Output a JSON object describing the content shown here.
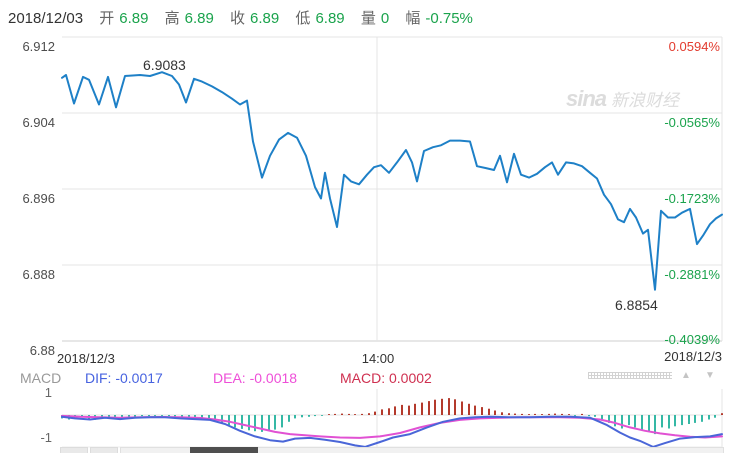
{
  "header": {
    "date": "2018/12/03",
    "fields": [
      {
        "label": "开",
        "value": "6.89"
      },
      {
        "label": "高",
        "value": "6.89"
      },
      {
        "label": "收",
        "value": "6.89"
      },
      {
        "label": "低",
        "value": "6.89"
      },
      {
        "label": "量",
        "value": "0"
      },
      {
        "label": "幅",
        "value": "-0.75%"
      }
    ]
  },
  "watermark": {
    "logo": "sina",
    "brand": "新浪财经"
  },
  "icons": {
    "pane_up": "▲",
    "pane_down": "▼"
  },
  "colors": {
    "price_line": "#1e80c7",
    "dif_line": "#4a66d8",
    "dea_line": "#e151d3",
    "hist_positive": "#b43a2c",
    "hist_negative": "#35b8a5",
    "grid": "#e4e4e4",
    "axis_positive_pct": "#e23b2e",
    "axis_negative_pct": "#1aa34c"
  },
  "macd_panel": {
    "title": "MACD",
    "dif_label": "DIF: -0.0017",
    "dea_label": "DEA: -0.0018",
    "macd_label": "MACD: 0.0002"
  },
  "chart_data": [
    {
      "type": "line",
      "name": "intraday-price",
      "y_axis_left": [
        "6.912",
        "6.904",
        "6.896",
        "6.888",
        "6.88"
      ],
      "y_axis_right": [
        "0.0594%",
        "-0.0565%",
        "-0.1723%",
        "-0.2881%",
        "-0.4039%"
      ],
      "y_axis_right_colors": [
        "#e23b2e",
        "#1aa34c",
        "#1aa34c",
        "#1aa34c",
        "#1aa34c"
      ],
      "x_axis_labels": [
        "2018/12/3",
        "14:00",
        "2018/12/3"
      ],
      "ylim": [
        6.88,
        6.912
      ],
      "high_label": "6.9083",
      "low_label": "6.8854",
      "points": [
        [
          62,
          6.9077
        ],
        [
          66,
          6.908
        ],
        [
          74,
          6.905
        ],
        [
          83,
          6.9078
        ],
        [
          89,
          6.9075
        ],
        [
          99,
          6.9049
        ],
        [
          108,
          6.9078
        ],
        [
          116,
          6.9046
        ],
        [
          125,
          6.9079
        ],
        [
          140,
          6.908
        ],
        [
          150,
          6.9079
        ],
        [
          162,
          6.9083
        ],
        [
          172,
          6.9079
        ],
        [
          179,
          6.907
        ],
        [
          186,
          6.9051
        ],
        [
          194,
          6.9076
        ],
        [
          202,
          6.9073
        ],
        [
          212,
          6.9068
        ],
        [
          222,
          6.9062
        ],
        [
          232,
          6.9055
        ],
        [
          240,
          6.9049
        ],
        [
          247,
          6.9053
        ],
        [
          253,
          6.901
        ],
        [
          262,
          6.8972
        ],
        [
          270,
          6.8995
        ],
        [
          279,
          6.9012
        ],
        [
          288,
          6.9019
        ],
        [
          297,
          6.9014
        ],
        [
          306,
          6.8995
        ],
        [
          315,
          6.8962
        ],
        [
          321,
          6.895
        ],
        [
          325,
          6.8977
        ],
        [
          330,
          6.895
        ],
        [
          337,
          6.892
        ],
        [
          344,
          6.8975
        ],
        [
          351,
          6.8968
        ],
        [
          359,
          6.8965
        ],
        [
          367,
          6.8975
        ],
        [
          374,
          6.8983
        ],
        [
          381,
          6.8985
        ],
        [
          389,
          6.8977
        ],
        [
          397,
          6.8988
        ],
        [
          406,
          6.9001
        ],
        [
          412,
          6.8988
        ],
        [
          417,
          6.8968
        ],
        [
          424,
          6.9
        ],
        [
          433,
          6.9004
        ],
        [
          441,
          6.9006
        ],
        [
          450,
          6.9011
        ],
        [
          460,
          6.9011
        ],
        [
          470,
          6.901
        ],
        [
          477,
          6.8984
        ],
        [
          486,
          6.8982
        ],
        [
          494,
          6.898
        ],
        [
          500,
          6.8995
        ],
        [
          507,
          6.8967
        ],
        [
          514,
          6.8997
        ],
        [
          521,
          6.8975
        ],
        [
          529,
          6.8972
        ],
        [
          537,
          6.8976
        ],
        [
          545,
          6.8983
        ],
        [
          552,
          6.8988
        ],
        [
          558,
          6.8975
        ],
        [
          566,
          6.8988
        ],
        [
          574,
          6.8987
        ],
        [
          582,
          6.8984
        ],
        [
          590,
          6.8977
        ],
        [
          597,
          6.8971
        ],
        [
          604,
          6.8954
        ],
        [
          611,
          6.8944
        ],
        [
          618,
          6.8928
        ],
        [
          624,
          6.8925
        ],
        [
          630,
          6.8939
        ],
        [
          636,
          6.893
        ],
        [
          643,
          6.8913
        ],
        [
          648,
          6.8917
        ],
        [
          655,
          6.8854
        ],
        [
          661,
          6.8937
        ],
        [
          668,
          6.893
        ],
        [
          675,
          6.893
        ],
        [
          682,
          6.8935
        ],
        [
          690,
          6.8939
        ],
        [
          697,
          6.8902
        ],
        [
          703,
          6.8911
        ],
        [
          710,
          6.8923
        ],
        [
          716,
          6.8929
        ],
        [
          722,
          6.8933
        ]
      ]
    },
    {
      "type": "bar",
      "name": "macd-histogram-and-lines",
      "y_ticks": [
        "1",
        "-1"
      ],
      "histogram": [
        [
          62,
          -0.15
        ],
        [
          69,
          -0.2
        ],
        [
          75,
          -0.12
        ],
        [
          82,
          -0.1
        ],
        [
          89,
          -0.18
        ],
        [
          95,
          -0.22
        ],
        [
          102,
          -0.12
        ],
        [
          109,
          -0.1
        ],
        [
          115,
          -0.2
        ],
        [
          122,
          -0.15
        ],
        [
          129,
          -0.1
        ],
        [
          135,
          -0.08
        ],
        [
          142,
          -0.05
        ],
        [
          149,
          -0.05
        ],
        [
          155,
          -0.04
        ],
        [
          162,
          -0.04
        ],
        [
          169,
          -0.05
        ],
        [
          175,
          -0.06
        ],
        [
          182,
          -0.1
        ],
        [
          189,
          -0.08
        ],
        [
          195,
          -0.1
        ],
        [
          202,
          -0.12
        ],
        [
          209,
          -0.15
        ],
        [
          215,
          -0.2
        ],
        [
          222,
          -0.35
        ],
        [
          229,
          -0.45
        ],
        [
          235,
          -0.55
        ],
        [
          242,
          -0.62
        ],
        [
          249,
          -0.68
        ],
        [
          255,
          -0.72
        ],
        [
          262,
          -0.75
        ],
        [
          269,
          -0.7
        ],
        [
          275,
          -0.65
        ],
        [
          282,
          -0.55
        ],
        [
          289,
          -0.3
        ],
        [
          295,
          -0.15
        ],
        [
          302,
          -0.1
        ],
        [
          309,
          -0.08
        ],
        [
          315,
          -0.05
        ],
        [
          322,
          -0.04
        ],
        [
          329,
          0.04
        ],
        [
          335,
          0.05
        ],
        [
          342,
          0.06
        ],
        [
          349,
          0.05
        ],
        [
          355,
          0.04
        ],
        [
          362,
          0.05
        ],
        [
          369,
          0.08
        ],
        [
          375,
          0.15
        ],
        [
          382,
          0.25
        ],
        [
          389,
          0.3
        ],
        [
          395,
          0.38
        ],
        [
          402,
          0.45
        ],
        [
          409,
          0.42
        ],
        [
          415,
          0.5
        ],
        [
          422,
          0.55
        ],
        [
          429,
          0.62
        ],
        [
          435,
          0.68
        ],
        [
          442,
          0.72
        ],
        [
          449,
          0.75
        ],
        [
          455,
          0.7
        ],
        [
          462,
          0.6
        ],
        [
          469,
          0.5
        ],
        [
          475,
          0.42
        ],
        [
          482,
          0.35
        ],
        [
          489,
          0.28
        ],
        [
          495,
          0.2
        ],
        [
          502,
          0.12
        ],
        [
          509,
          0.08
        ],
        [
          515,
          0.06
        ],
        [
          522,
          0.05
        ],
        [
          529,
          0.04
        ],
        [
          535,
          0.05
        ],
        [
          542,
          0.04
        ],
        [
          549,
          0.05
        ],
        [
          555,
          0.06
        ],
        [
          562,
          0.05
        ],
        [
          569,
          0.04
        ],
        [
          575,
          -0.04
        ],
        [
          582,
          0.05
        ],
        [
          589,
          -0.05
        ],
        [
          595,
          -0.08
        ],
        [
          602,
          -0.2
        ],
        [
          609,
          -0.35
        ],
        [
          615,
          -0.5
        ],
        [
          622,
          -0.6
        ],
        [
          629,
          -0.45
        ],
        [
          635,
          -0.55
        ],
        [
          642,
          -0.65
        ],
        [
          649,
          -0.75
        ],
        [
          655,
          -0.85
        ],
        [
          662,
          -0.55
        ],
        [
          669,
          -0.6
        ],
        [
          675,
          -0.5
        ],
        [
          682,
          -0.45
        ],
        [
          689,
          -0.4
        ],
        [
          695,
          -0.35
        ],
        [
          702,
          -0.3
        ],
        [
          709,
          -0.2
        ],
        [
          715,
          -0.12
        ],
        [
          722,
          0.08
        ]
      ],
      "dif": [
        [
          62,
          -0.08
        ],
        [
          75,
          -0.15
        ],
        [
          90,
          -0.2
        ],
        [
          105,
          -0.12
        ],
        [
          120,
          -0.18
        ],
        [
          135,
          -0.12
        ],
        [
          150,
          -0.1
        ],
        [
          165,
          -0.1
        ],
        [
          180,
          -0.15
        ],
        [
          195,
          -0.18
        ],
        [
          210,
          -0.22
        ],
        [
          225,
          -0.4
        ],
        [
          240,
          -0.7
        ],
        [
          255,
          -0.95
        ],
        [
          270,
          -1.12
        ],
        [
          283,
          -1.18
        ],
        [
          295,
          -1.05
        ],
        [
          310,
          -1.02
        ],
        [
          325,
          -1.1
        ],
        [
          340,
          -1.2
        ],
        [
          355,
          -1.35
        ],
        [
          365,
          -1.42
        ],
        [
          380,
          -1.2
        ],
        [
          393,
          -1.0
        ],
        [
          410,
          -0.85
        ],
        [
          427,
          -0.55
        ],
        [
          443,
          -0.3
        ],
        [
          460,
          -0.15
        ],
        [
          475,
          -0.1
        ],
        [
          490,
          -0.08
        ],
        [
          510,
          -0.1
        ],
        [
          530,
          -0.1
        ],
        [
          550,
          -0.08
        ],
        [
          570,
          -0.08
        ],
        [
          590,
          -0.12
        ],
        [
          607,
          -0.45
        ],
        [
          620,
          -0.78
        ],
        [
          630,
          -1.0
        ],
        [
          640,
          -1.15
        ],
        [
          653,
          -1.42
        ],
        [
          665,
          -1.25
        ],
        [
          680,
          -1.05
        ],
        [
          695,
          -0.98
        ],
        [
          710,
          -0.95
        ],
        [
          722,
          -0.85
        ]
      ],
      "dea": [
        [
          62,
          -0.04
        ],
        [
          80,
          -0.08
        ],
        [
          100,
          -0.1
        ],
        [
          120,
          -0.12
        ],
        [
          140,
          -0.1
        ],
        [
          160,
          -0.09
        ],
        [
          180,
          -0.1
        ],
        [
          200,
          -0.13
        ],
        [
          215,
          -0.2
        ],
        [
          230,
          -0.3
        ],
        [
          245,
          -0.45
        ],
        [
          260,
          -0.6
        ],
        [
          275,
          -0.75
        ],
        [
          290,
          -0.85
        ],
        [
          305,
          -0.9
        ],
        [
          320,
          -0.95
        ],
        [
          340,
          -1.0
        ],
        [
          360,
          -1.02
        ],
        [
          380,
          -0.95
        ],
        [
          400,
          -0.8
        ],
        [
          420,
          -0.55
        ],
        [
          440,
          -0.35
        ],
        [
          460,
          -0.22
        ],
        [
          480,
          -0.15
        ],
        [
          500,
          -0.12
        ],
        [
          520,
          -0.1
        ],
        [
          540,
          -0.1
        ],
        [
          560,
          -0.1
        ],
        [
          580,
          -0.12
        ],
        [
          600,
          -0.2
        ],
        [
          615,
          -0.35
        ],
        [
          630,
          -0.55
        ],
        [
          645,
          -0.7
        ],
        [
          660,
          -0.82
        ],
        [
          675,
          -0.9
        ],
        [
          690,
          -0.97
        ],
        [
          705,
          -1.0
        ],
        [
          722,
          -0.95
        ]
      ]
    }
  ]
}
